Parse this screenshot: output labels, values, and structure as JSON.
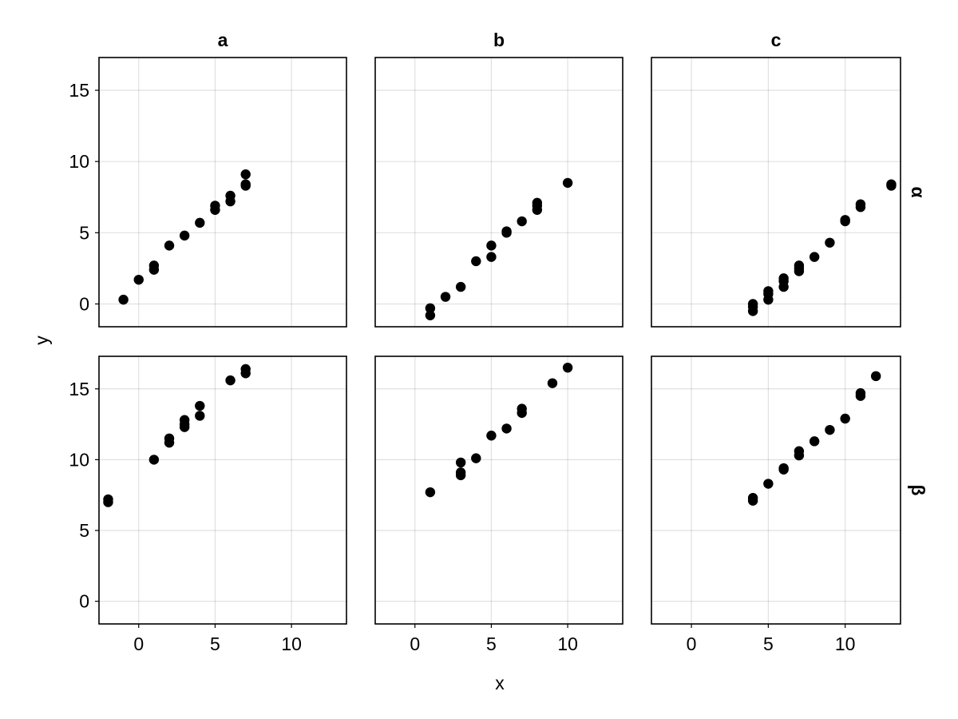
{
  "chart_data": {
    "type": "scatter",
    "xlabel": "x",
    "ylabel": "y",
    "xlim": [
      -2.6,
      13.6
    ],
    "ylim": [
      -1.6,
      17.3
    ],
    "x_ticks": [
      0,
      5,
      10
    ],
    "y_ticks": [
      0,
      5,
      10,
      15
    ],
    "grid": true,
    "column_titles": [
      "a",
      "b",
      "c"
    ],
    "row_titles": [
      "α",
      "β"
    ],
    "marker_color": "#000000",
    "panels": [
      {
        "row": "α",
        "col": "a",
        "points": [
          [
            -1,
            0.3
          ],
          [
            0,
            1.7
          ],
          [
            1,
            2.4
          ],
          [
            1,
            2.7
          ],
          [
            2,
            4.1
          ],
          [
            3,
            4.8
          ],
          [
            4,
            5.7
          ],
          [
            5,
            6.6
          ],
          [
            5,
            6.9
          ],
          [
            6,
            7.2
          ],
          [
            6,
            7.6
          ],
          [
            7,
            8.3
          ],
          [
            7,
            8.4
          ],
          [
            7,
            9.1
          ]
        ]
      },
      {
        "row": "α",
        "col": "b",
        "points": [
          [
            1,
            -0.8
          ],
          [
            1,
            -0.3
          ],
          [
            2,
            0.5
          ],
          [
            3,
            1.2
          ],
          [
            4,
            3.0
          ],
          [
            5,
            3.3
          ],
          [
            5,
            4.1
          ],
          [
            6,
            5.0
          ],
          [
            6,
            5.1
          ],
          [
            7,
            5.8
          ],
          [
            8,
            6.6
          ],
          [
            8,
            6.9
          ],
          [
            8,
            7.1
          ],
          [
            10,
            8.5
          ]
        ]
      },
      {
        "row": "α",
        "col": "c",
        "points": [
          [
            4,
            -0.5
          ],
          [
            4,
            -0.2
          ],
          [
            4,
            0.0
          ],
          [
            5,
            0.3
          ],
          [
            5,
            0.7
          ],
          [
            5,
            0.9
          ],
          [
            6,
            1.2
          ],
          [
            6,
            1.6
          ],
          [
            6,
            1.8
          ],
          [
            7,
            2.3
          ],
          [
            7,
            2.5
          ],
          [
            7,
            2.7
          ],
          [
            8,
            3.3
          ],
          [
            9,
            4.3
          ],
          [
            10,
            5.8
          ],
          [
            10,
            5.9
          ],
          [
            11,
            6.8
          ],
          [
            11,
            7.0
          ],
          [
            13,
            8.3
          ],
          [
            13,
            8.4
          ]
        ]
      },
      {
        "row": "β",
        "col": "a",
        "points": [
          [
            -2,
            7.0
          ],
          [
            -2,
            7.2
          ],
          [
            1,
            10.0
          ],
          [
            2,
            11.2
          ],
          [
            2,
            11.5
          ],
          [
            3,
            12.3
          ],
          [
            3,
            12.5
          ],
          [
            3,
            12.8
          ],
          [
            4,
            13.1
          ],
          [
            4,
            13.8
          ],
          [
            6,
            15.6
          ],
          [
            7,
            16.1
          ],
          [
            7,
            16.4
          ]
        ]
      },
      {
        "row": "β",
        "col": "b",
        "points": [
          [
            1,
            7.7
          ],
          [
            3,
            8.9
          ],
          [
            3,
            9.1
          ],
          [
            3,
            9.8
          ],
          [
            4,
            10.1
          ],
          [
            5,
            11.7
          ],
          [
            6,
            12.2
          ],
          [
            7,
            13.3
          ],
          [
            7,
            13.6
          ],
          [
            9,
            15.4
          ],
          [
            10,
            16.5
          ]
        ]
      },
      {
        "row": "β",
        "col": "c",
        "points": [
          [
            4,
            7.1
          ],
          [
            4,
            7.3
          ],
          [
            5,
            8.3
          ],
          [
            6,
            9.3
          ],
          [
            6,
            9.4
          ],
          [
            7,
            10.3
          ],
          [
            7,
            10.6
          ],
          [
            8,
            11.3
          ],
          [
            9,
            12.1
          ],
          [
            10,
            12.9
          ],
          [
            11,
            14.5
          ],
          [
            11,
            14.7
          ],
          [
            12,
            15.9
          ]
        ]
      }
    ]
  }
}
